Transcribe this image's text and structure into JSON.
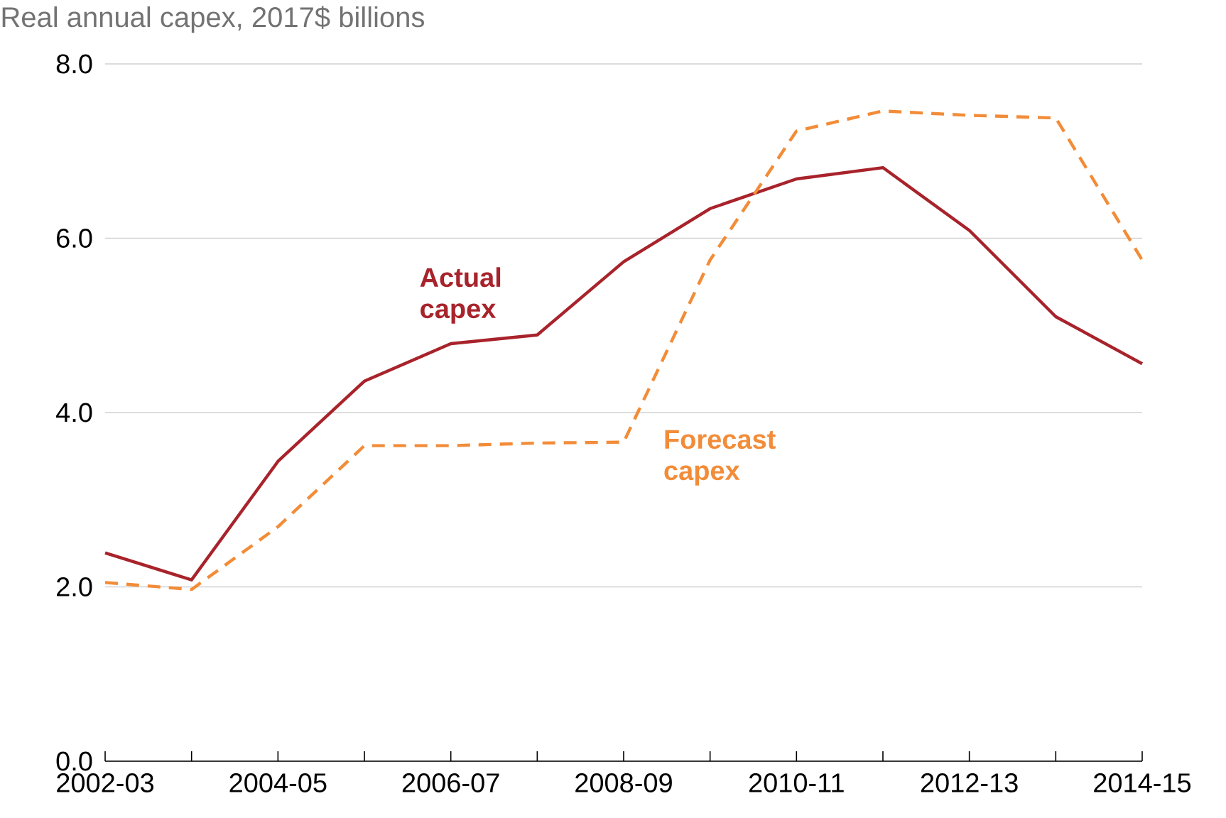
{
  "chart_data": {
    "type": "line",
    "title": "Real annual capex, 2017$ billions",
    "categories": [
      "2002-03",
      null,
      "2004-05",
      null,
      "2006-07",
      null,
      "2008-09",
      null,
      "2010-11",
      null,
      "2012-13",
      null,
      "2014-15"
    ],
    "series": [
      {
        "name": "Actual capex",
        "color": "#a8232b",
        "line_style": "solid",
        "values": [
          2.39,
          2.08,
          3.44,
          4.36,
          4.79,
          4.89,
          5.73,
          6.34,
          6.68,
          6.81,
          6.09,
          5.1,
          4.56
        ]
      },
      {
        "name": "Forecast capex",
        "color": "#f28c38",
        "line_style": "dashed",
        "values": [
          2.05,
          1.97,
          2.69,
          3.62,
          3.62,
          3.65,
          3.66,
          5.75,
          7.23,
          7.46,
          7.41,
          7.38,
          5.75
        ]
      }
    ],
    "ylim": [
      0,
      8
    ],
    "yticks": [
      {
        "value": 0,
        "label": "0.0"
      },
      {
        "value": 2,
        "label": "2.0"
      },
      {
        "value": 4,
        "label": "4.0"
      },
      {
        "value": 6,
        "label": "6.0"
      },
      {
        "value": 8,
        "label": "8.0"
      }
    ],
    "grid": "y",
    "marker": "none"
  }
}
